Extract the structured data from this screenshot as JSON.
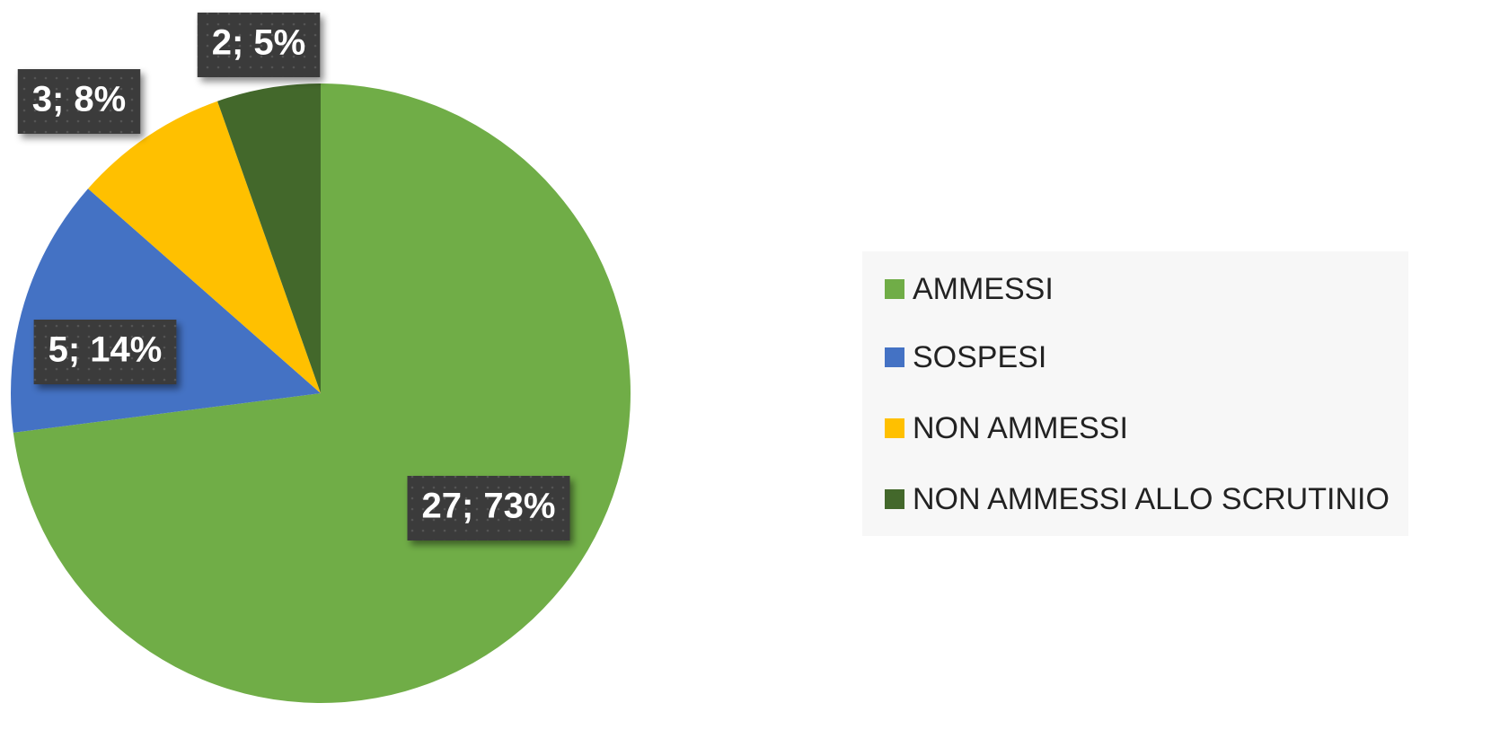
{
  "chart_data": {
    "type": "pie",
    "categories": [
      "AMMESSI",
      "SOSPESI",
      "NON AMMESSI",
      "NON AMMESSI ALLO SCRUTINIO"
    ],
    "values": [
      27,
      5,
      3,
      2
    ],
    "value_labels": [
      "27; 73%",
      "5; 14%",
      "3; 8%",
      "2; 5%"
    ],
    "colors": [
      "#70ad47",
      "#4472c4",
      "#ffc000",
      "#43682b"
    ],
    "legend": "right"
  }
}
